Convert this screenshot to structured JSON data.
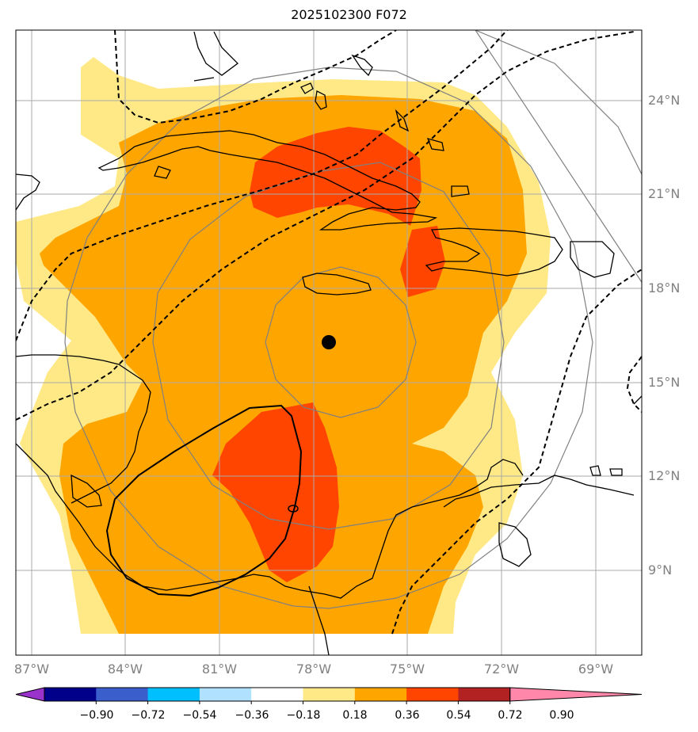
{
  "title": "2025102300 F072",
  "lat_labels": [
    "24°N",
    "21°N",
    "18°N",
    "15°N",
    "12°N",
    "9°N"
  ],
  "lon_labels": [
    "87°W",
    "84°W",
    "81°W",
    "78°W",
    "75°W",
    "72°W",
    "69°W"
  ],
  "colorbar": {
    "ticks": [
      "−0.90",
      "−0.72",
      "−0.54",
      "−0.36",
      "−0.18",
      "0.18",
      "0.36",
      "0.54",
      "0.72",
      "0.90"
    ],
    "colors": [
      "#9a33cc",
      "#00008b",
      "#3a5fcd",
      "#00bfff",
      "#b0e2ff",
      "#ffffff",
      "#ffe987",
      "#ffa500",
      "#ff4500",
      "#b22222",
      "#ff88aa"
    ]
  },
  "fill_colors": {
    "low": "#ffe987",
    "mid": "#ffa500",
    "high": "#ff4500"
  },
  "storm_marker": "storm-center-dot"
}
